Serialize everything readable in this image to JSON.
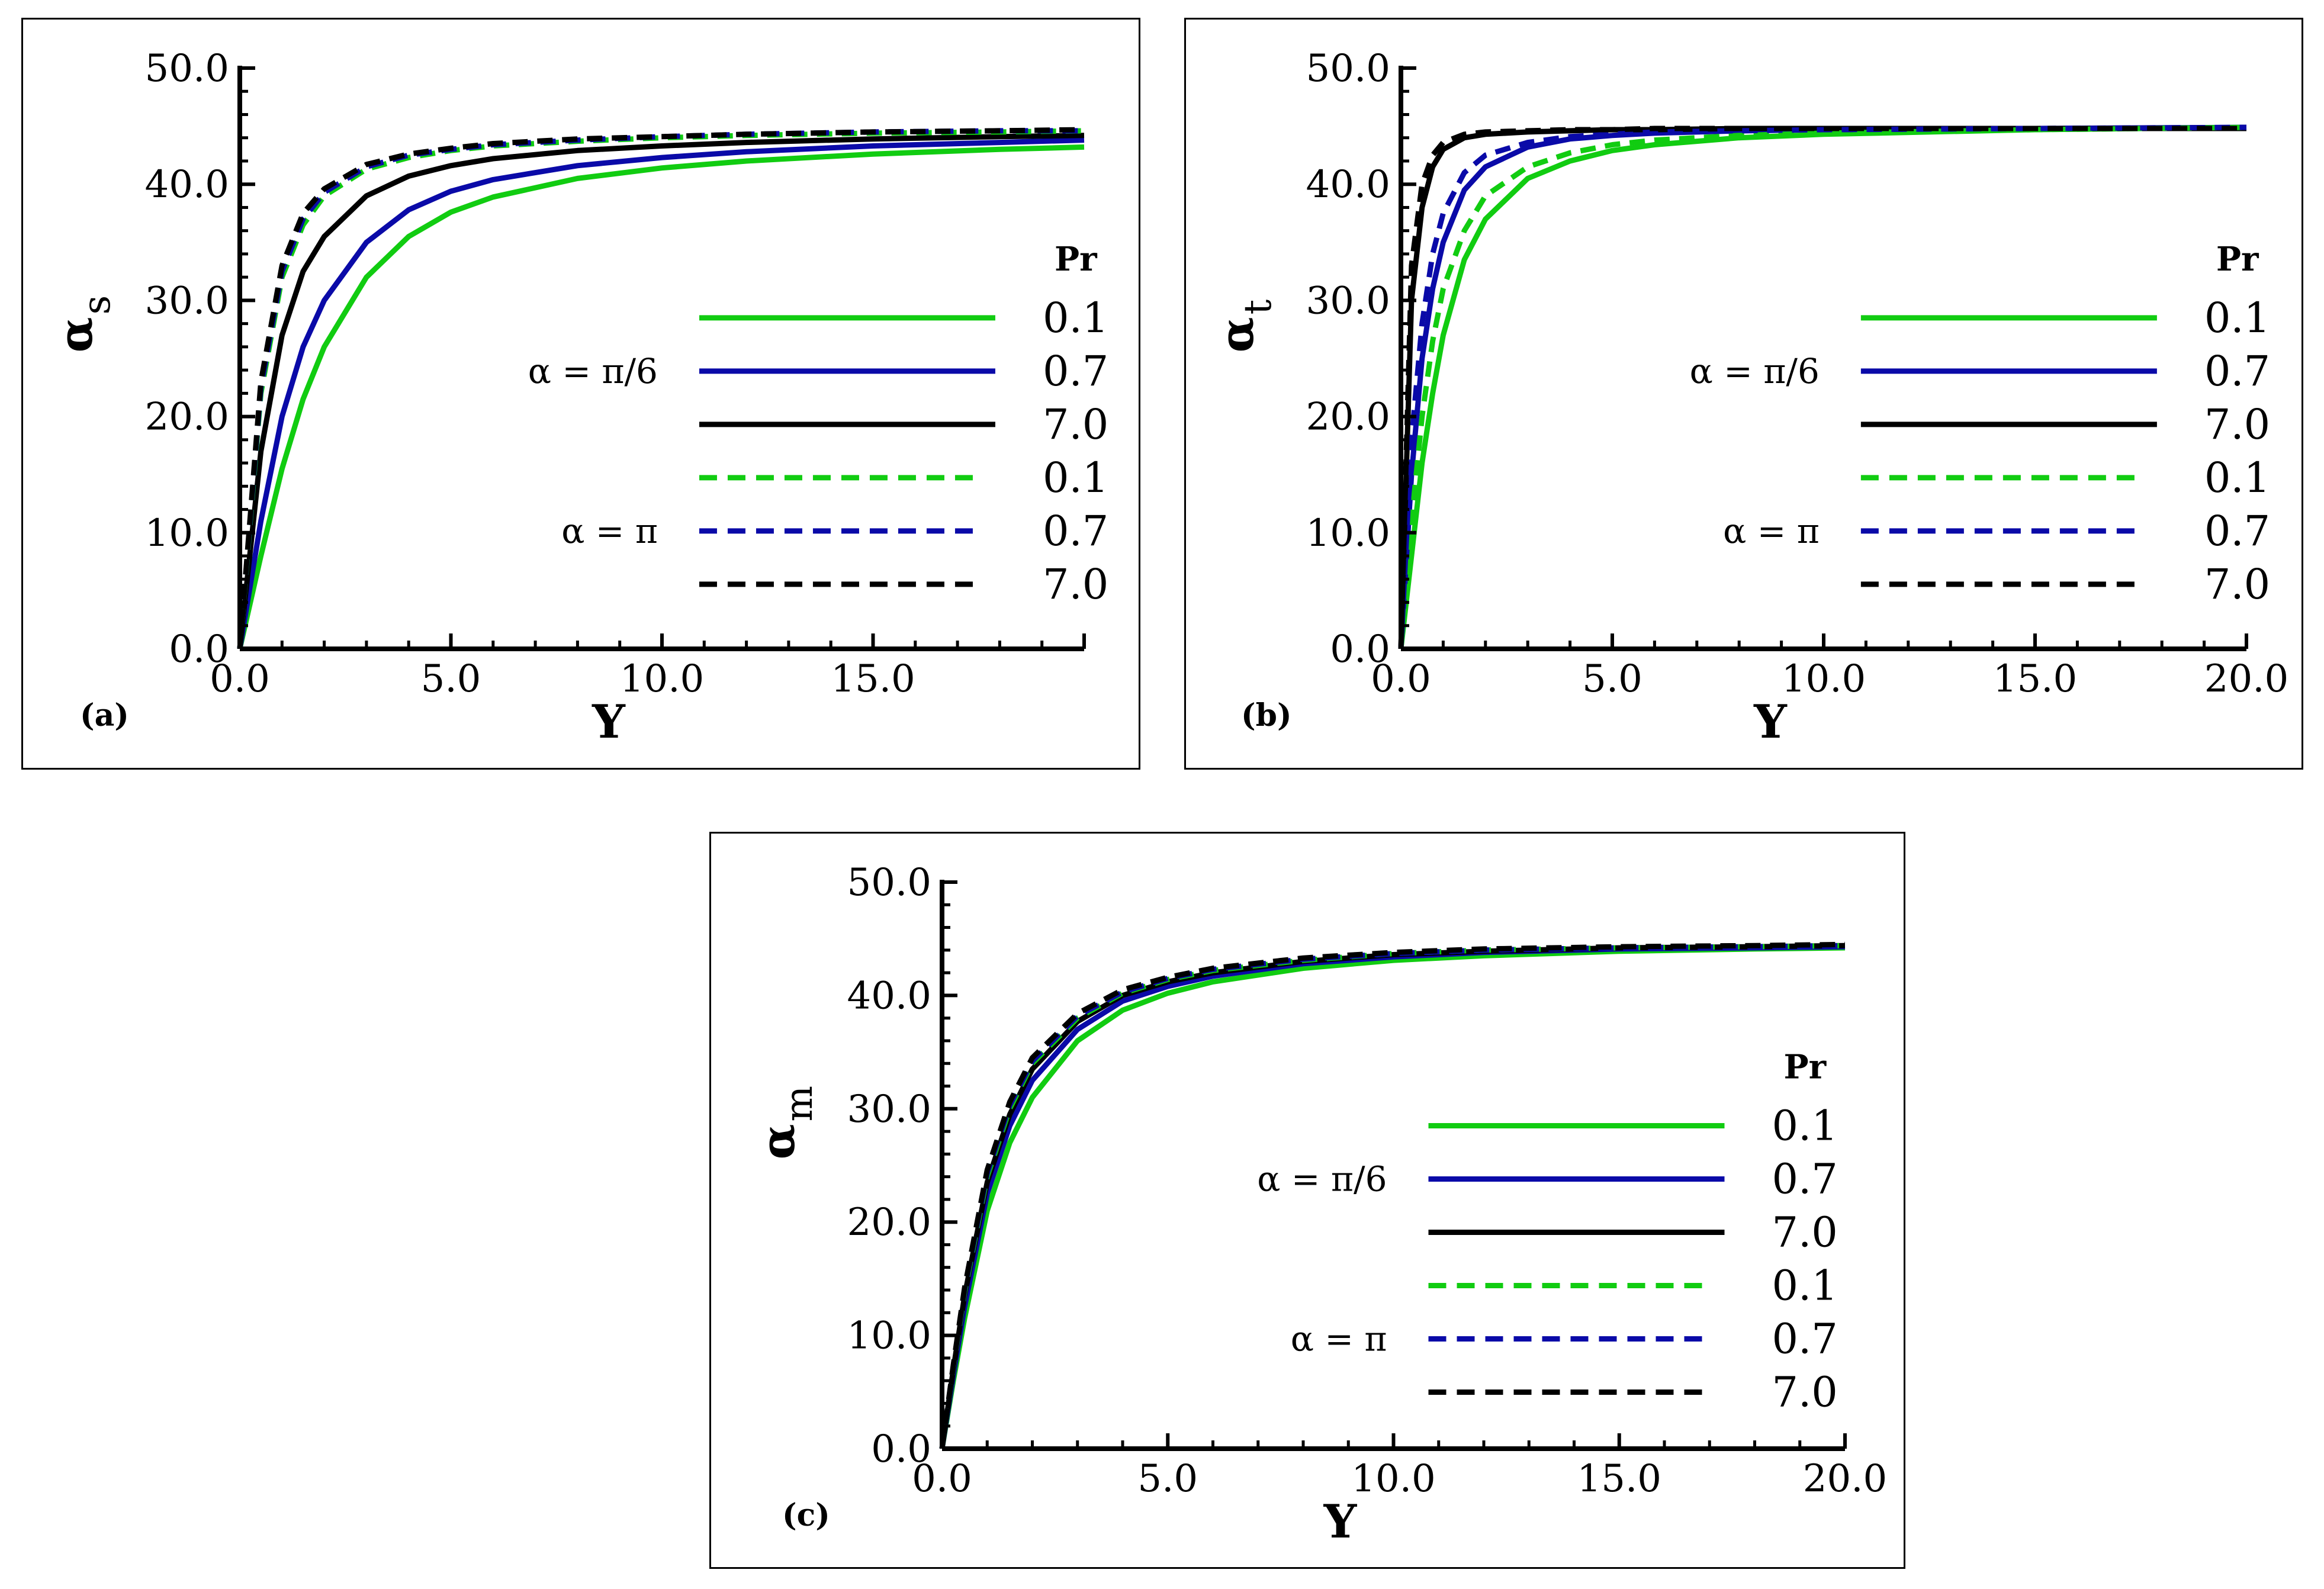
{
  "chart_data": [
    {
      "id": "a",
      "type": "line",
      "panel_label": "(a)",
      "xlabel": "Y",
      "ylabel": "α",
      "ylabel_sub": "s",
      "xlim": [
        0,
        20
      ],
      "ylim": [
        0,
        50
      ],
      "xticks": [
        "0.0",
        "5.0",
        "10.0",
        "15.0"
      ],
      "yticks": [
        "0.0",
        "10.0",
        "20.0",
        "30.0",
        "40.0",
        "50.0"
      ],
      "legend_title": "Pr",
      "group_labels": [
        "α = π/6",
        "α = π"
      ],
      "x": [
        0,
        0.5,
        1,
        1.5,
        2,
        3,
        4,
        5,
        6,
        8,
        10,
        12,
        15,
        18,
        20
      ],
      "series": [
        {
          "name": "0.1",
          "group": "α = π/6",
          "color": "#11cc11",
          "dash": "solid",
          "values": [
            0,
            8,
            15.5,
            21.5,
            26,
            32,
            35.5,
            37.6,
            38.9,
            40.5,
            41.4,
            42,
            42.6,
            43,
            43.2
          ]
        },
        {
          "name": "0.7",
          "group": "α = π/6",
          "color": "#0a0aa8",
          "dash": "solid",
          "values": [
            0,
            11,
            20,
            26,
            30,
            35,
            37.8,
            39.4,
            40.4,
            41.6,
            42.3,
            42.8,
            43.3,
            43.6,
            43.8
          ]
        },
        {
          "name": "7.0",
          "group": "α = π/6",
          "color": "#000000",
          "dash": "solid",
          "values": [
            0,
            17,
            27,
            32.5,
            35.5,
            39,
            40.7,
            41.6,
            42.2,
            42.9,
            43.3,
            43.6,
            43.9,
            44.1,
            44.2
          ]
        },
        {
          "name": "0.1",
          "group": "α = π",
          "color": "#11cc11",
          "dash": "dashed",
          "values": [
            0,
            22,
            32,
            36.5,
            39,
            41.3,
            42.3,
            42.9,
            43.3,
            43.7,
            44,
            44.2,
            44.4,
            44.5,
            44.6
          ]
        },
        {
          "name": "0.7",
          "group": "α = π",
          "color": "#0a0aa8",
          "dash": "dashed",
          "values": [
            0,
            22.5,
            32.5,
            37,
            39.3,
            41.5,
            42.5,
            43,
            43.4,
            43.8,
            44.1,
            44.3,
            44.5,
            44.6,
            44.6
          ]
        },
        {
          "name": "7.0",
          "group": "α = π",
          "color": "#000000",
          "dash": "dashed",
          "values": [
            0,
            23,
            33,
            37.5,
            39.6,
            41.7,
            42.6,
            43.1,
            43.5,
            43.9,
            44.1,
            44.3,
            44.5,
            44.6,
            44.7
          ]
        }
      ]
    },
    {
      "id": "b",
      "type": "line",
      "panel_label": "(b)",
      "xlabel": "Y",
      "ylabel": "α",
      "ylabel_sub": "t",
      "xlim": [
        0,
        20
      ],
      "ylim": [
        0,
        50
      ],
      "xticks": [
        "0.0",
        "5.0",
        "10.0",
        "15.0",
        "20.0"
      ],
      "yticks": [
        "0.0",
        "10.0",
        "20.0",
        "30.0",
        "40.0",
        "50.0"
      ],
      "legend_title": "Pr",
      "group_labels": [
        "α = π/6",
        "α = π"
      ],
      "x": [
        0,
        0.25,
        0.5,
        0.75,
        1,
        1.5,
        2,
        3,
        4,
        5,
        6,
        8,
        10,
        15,
        20
      ],
      "series": [
        {
          "name": "0.1",
          "group": "α = π/6",
          "color": "#11cc11",
          "dash": "solid",
          "values": [
            0,
            8,
            16,
            22,
            27,
            33.5,
            37,
            40.5,
            42,
            42.9,
            43.4,
            44,
            44.3,
            44.7,
            44.9
          ]
        },
        {
          "name": "0.7",
          "group": "α = π/6",
          "color": "#0a0aa8",
          "dash": "solid",
          "values": [
            0,
            15,
            25,
            31,
            35,
            39.5,
            41.5,
            43.2,
            43.9,
            44.2,
            44.4,
            44.6,
            44.7,
            44.8,
            44.9
          ]
        },
        {
          "name": "7.0",
          "group": "α = π/6",
          "color": "#000000",
          "dash": "solid",
          "values": [
            0,
            30,
            38,
            41.5,
            43,
            44,
            44.3,
            44.5,
            44.6,
            44.7,
            44.7,
            44.8,
            44.8,
            44.8,
            44.8
          ]
        },
        {
          "name": "0.1",
          "group": "α = π",
          "color": "#11cc11",
          "dash": "dashed",
          "values": [
            0,
            11,
            20,
            26.5,
            31,
            36,
            39,
            41.5,
            42.7,
            43.4,
            43.8,
            44.2,
            44.4,
            44.7,
            44.9
          ]
        },
        {
          "name": "0.7",
          "group": "α = π",
          "color": "#0a0aa8",
          "dash": "dashed",
          "values": [
            0,
            18,
            28,
            34,
            37.5,
            41,
            42.5,
            43.6,
            44.1,
            44.3,
            44.5,
            44.6,
            44.7,
            44.8,
            44.9
          ]
        },
        {
          "name": "7.0",
          "group": "α = π",
          "color": "#000000",
          "dash": "dashed",
          "values": [
            0,
            33,
            40,
            42.5,
            43.6,
            44.3,
            44.5,
            44.6,
            44.7,
            44.7,
            44.8,
            44.8,
            44.8,
            44.8,
            44.8
          ]
        }
      ]
    },
    {
      "id": "c",
      "type": "line",
      "panel_label": "(c)",
      "xlabel": "Y",
      "ylabel": "α",
      "ylabel_sub": "m",
      "xlim": [
        0,
        20
      ],
      "ylim": [
        0,
        50
      ],
      "xticks": [
        "0.0",
        "5.0",
        "10.0",
        "15.0",
        "20.0"
      ],
      "yticks": [
        "0.0",
        "10.0",
        "20.0",
        "30.0",
        "40.0",
        "50.0"
      ],
      "legend_title": "Pr",
      "group_labels": [
        "α = π/6",
        "α = π"
      ],
      "x": [
        0,
        0.25,
        0.5,
        1,
        1.5,
        2,
        3,
        4,
        5,
        6,
        8,
        10,
        12,
        15,
        18,
        20
      ],
      "series": [
        {
          "name": "0.1",
          "group": "α = π/6",
          "color": "#11cc11",
          "dash": "solid",
          "values": [
            0,
            6,
            11.5,
            21,
            27,
            31,
            36,
            38.7,
            40.2,
            41.2,
            42.4,
            43.1,
            43.5,
            43.9,
            44.1,
            44.2
          ]
        },
        {
          "name": "0.7",
          "group": "α = π/6",
          "color": "#0a0aa8",
          "dash": "solid",
          "values": [
            0,
            6.5,
            12.5,
            22.5,
            28.5,
            32.5,
            37,
            39.5,
            40.8,
            41.7,
            42.8,
            43.4,
            43.8,
            44.1,
            44.2,
            44.3
          ]
        },
        {
          "name": "7.0",
          "group": "α = π/6",
          "color": "#000000",
          "dash": "solid",
          "values": [
            0,
            7,
            13.5,
            23.5,
            29.5,
            33.5,
            37.7,
            40,
            41.2,
            42,
            43,
            43.6,
            43.9,
            44.2,
            44.3,
            44.4
          ]
        },
        {
          "name": "0.1",
          "group": "α = π",
          "color": "#11cc11",
          "dash": "dashed",
          "values": [
            0,
            7.2,
            13.8,
            24,
            30,
            34,
            38,
            40.2,
            41.4,
            42.2,
            43.1,
            43.7,
            44,
            44.2,
            44.3,
            44.4
          ]
        },
        {
          "name": "0.7",
          "group": "α = π",
          "color": "#0a0aa8",
          "dash": "dashed",
          "values": [
            0,
            7.3,
            14,
            24.3,
            30.3,
            34.2,
            38.2,
            40.3,
            41.5,
            42.3,
            43.2,
            43.7,
            44,
            44.2,
            44.3,
            44.4
          ]
        },
        {
          "name": "7.0",
          "group": "α = π",
          "color": "#000000",
          "dash": "dashed",
          "values": [
            0,
            7.4,
            14.2,
            24.6,
            30.6,
            34.5,
            38.4,
            40.5,
            41.6,
            42.4,
            43.3,
            43.8,
            44.1,
            44.3,
            44.4,
            44.5
          ]
        }
      ]
    }
  ]
}
